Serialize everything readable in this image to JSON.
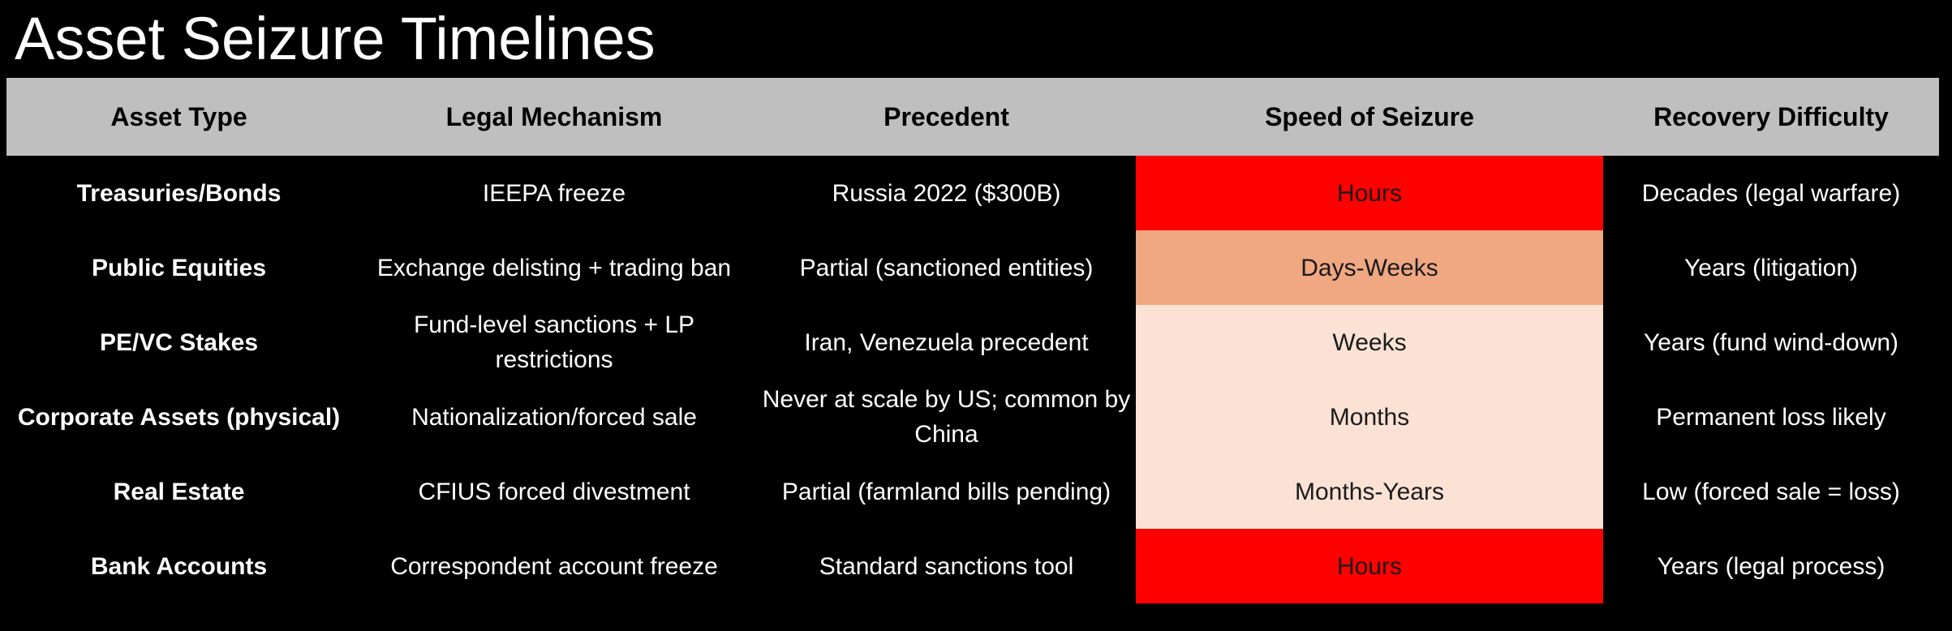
{
  "title": "Asset Seizure Timelines",
  "colors": {
    "header_bg": "#bfbfbf",
    "speed_hours": "#ff0000",
    "speed_days_weeks": "#f0a882",
    "speed_slow": "#fbe2d5"
  },
  "table": {
    "columns": [
      "Asset Type",
      "Legal Mechanism",
      "Precedent",
      "Speed of Seizure",
      "Recovery Difficulty"
    ],
    "rows": [
      {
        "asset": "Treasuries/Bonds",
        "mechanism": "IEEPA freeze",
        "precedent": "Russia 2022 ($300B)",
        "speed": "Hours",
        "speed_level": "hours",
        "recovery": "Decades (legal warfare)"
      },
      {
        "asset": "Public Equities",
        "mechanism": "Exchange delisting + trading ban",
        "precedent": "Partial (sanctioned entities)",
        "speed": "Days-Weeks",
        "speed_level": "days",
        "recovery": "Years (litigation)"
      },
      {
        "asset": "PE/VC Stakes",
        "mechanism": "Fund-level sanctions + LP restrictions",
        "precedent": "Iran, Venezuela precedent",
        "speed": "Weeks",
        "speed_level": "light",
        "recovery": "Years (fund wind-down)"
      },
      {
        "asset": "Corporate Assets (physical)",
        "mechanism": "Nationalization/forced sale",
        "precedent": "Never at scale by US; common by China",
        "speed": "Months",
        "speed_level": "light",
        "recovery": "Permanent loss likely"
      },
      {
        "asset": "Real Estate",
        "mechanism": "CFIUS forced divestment",
        "precedent": "Partial (farmland bills pending)",
        "speed": "Months-Years",
        "speed_level": "light",
        "recovery": "Low (forced sale = loss)"
      },
      {
        "asset": "Bank Accounts",
        "mechanism": "Correspondent account freeze",
        "precedent": "Standard sanctions tool",
        "speed": "Hours",
        "speed_level": "hours",
        "recovery": "Years (legal process)"
      }
    ]
  }
}
